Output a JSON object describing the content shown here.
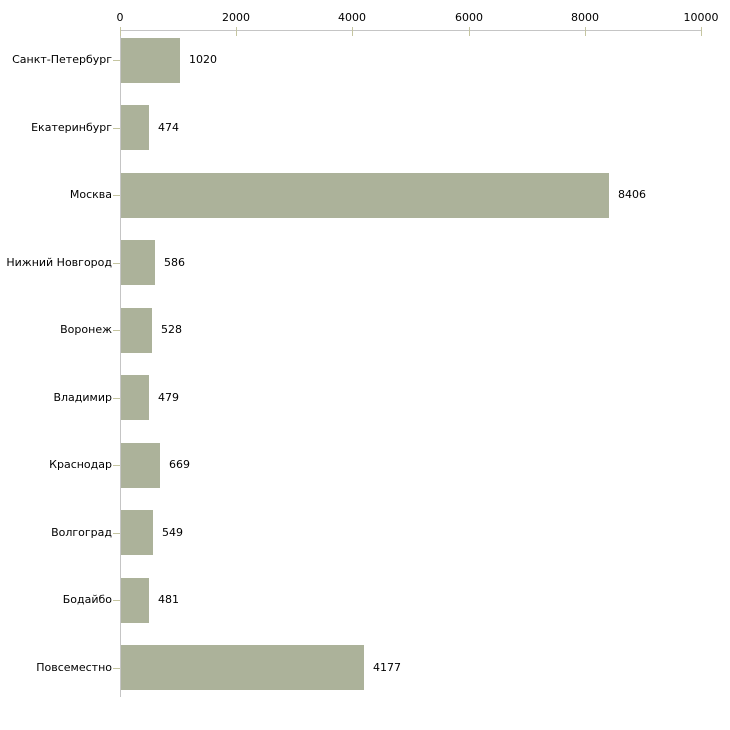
{
  "chart_data": {
    "type": "bar",
    "orientation": "horizontal",
    "title": "",
    "xlabel": "",
    "ylabel": "",
    "categories": [
      "Санкт-Петербург",
      "Екатеринбург",
      "Москва",
      "Нижний Новгород",
      "Воронеж",
      "Владимир",
      "Краснодар",
      "Волгоград",
      "Бодайбо",
      "Повсеместно"
    ],
    "values": [
      1020,
      474,
      8406,
      586,
      528,
      479,
      669,
      549,
      481,
      4177
    ],
    "value_labels": [
      "1020",
      "474",
      "8406",
      "586",
      "528",
      "479",
      "669",
      "549",
      "481",
      "4177"
    ],
    "xlim": [
      0,
      10000
    ],
    "x_ticks": [
      0,
      2000,
      4000,
      6000,
      8000,
      10000
    ],
    "x_tick_labels": [
      "0",
      "2000",
      "4000",
      "6000",
      "8000",
      "10000"
    ],
    "axis_position": "top",
    "grid": false,
    "legend": null,
    "colors": {
      "bar_fill": "#acb29a",
      "axis_line": "#c5c5c5",
      "tick_mark": "#c5c5a0",
      "text": "#000000",
      "background": "#ffffff"
    }
  }
}
